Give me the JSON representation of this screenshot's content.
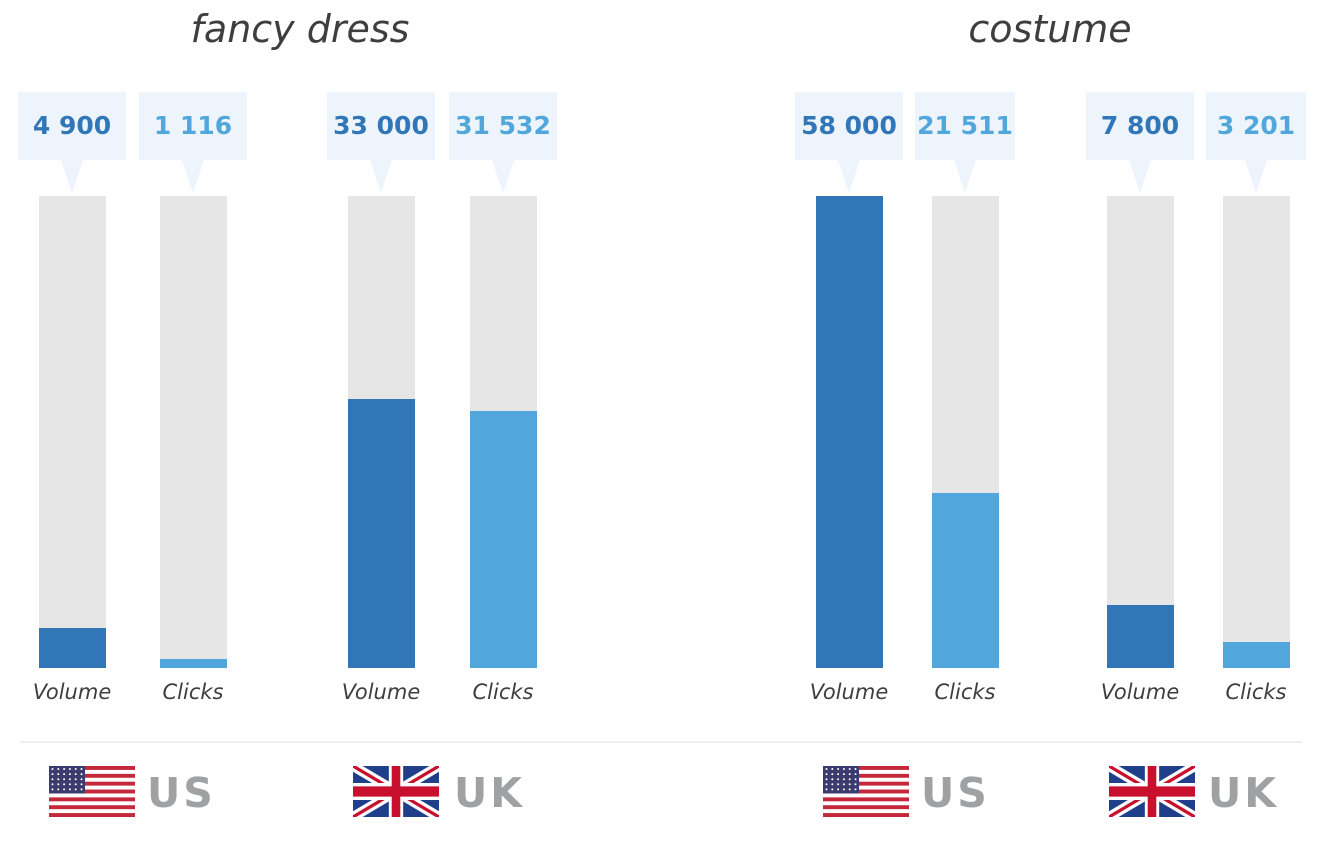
{
  "colors": {
    "volume": "#3177b8",
    "clicks": "#51a7dc",
    "track": "#e6e6e6",
    "callout_bg": "#edf4fc"
  },
  "chart_data": {
    "type": "bar",
    "scale_max": 58000,
    "groups": [
      {
        "title": "fancy dress",
        "markets": [
          {
            "country": "US",
            "flag": "us-flag-icon",
            "volume": 4900,
            "clicks": 1116,
            "volume_label": "4 900",
            "clicks_label": "1 116"
          },
          {
            "country": "UK",
            "flag": "uk-flag-icon",
            "volume": 33000,
            "clicks": 31532,
            "volume_label": "33 000",
            "clicks_label": "31 532"
          }
        ]
      },
      {
        "title": "costume",
        "markets": [
          {
            "country": "US",
            "flag": "us-flag-icon",
            "volume": 58000,
            "clicks": 21511,
            "volume_label": "58 000",
            "clicks_label": "21 511"
          },
          {
            "country": "UK",
            "flag": "uk-flag-icon",
            "volume": 7800,
            "clicks": 3201,
            "volume_label": "7 800",
            "clicks_label": "3 201"
          }
        ]
      }
    ],
    "series": [
      {
        "key": "volume",
        "label": "Volume"
      },
      {
        "key": "clicks",
        "label": "Clicks"
      }
    ]
  }
}
